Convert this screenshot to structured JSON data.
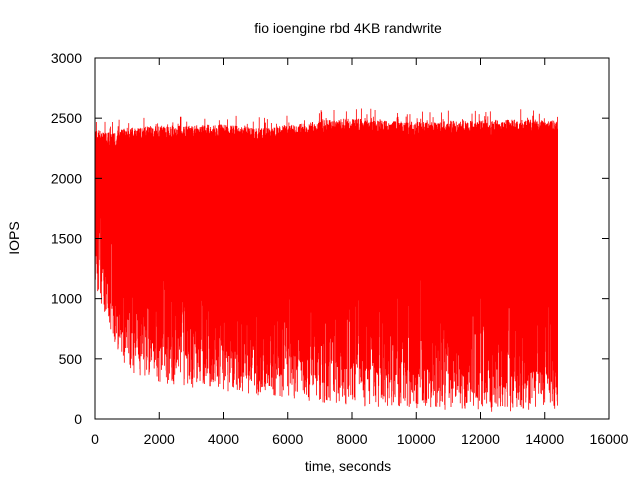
{
  "chart_data": {
    "type": "line",
    "title": "fio ioengine rbd 4KB randwrite",
    "xlabel": "time, seconds",
    "ylabel": "IOPS",
    "xlim": [
      0,
      16000
    ],
    "ylim": [
      0,
      3000
    ],
    "xticks": [
      0,
      2000,
      4000,
      6000,
      8000,
      10000,
      12000,
      14000,
      16000
    ],
    "yticks": [
      0,
      500,
      1000,
      1500,
      2000,
      2500,
      3000
    ],
    "xtick_labels": [
      "0",
      "2000",
      "4000",
      "6000",
      "8000",
      "10000",
      "12000",
      "14000",
      "16000"
    ],
    "ytick_labels": [
      "0",
      "500",
      "1000",
      "1500",
      "2000",
      "2500",
      "3000"
    ],
    "grid": false,
    "legend": "none",
    "series": [
      {
        "color": "#ff0000",
        "x": [
          0,
          500,
          1000,
          2000,
          3000,
          4000,
          5000,
          6000,
          7000,
          8000,
          9000,
          10000,
          11000,
          12000,
          13000,
          14000,
          14400
        ],
        "upper": [
          2400,
          2380,
          2420,
          2440,
          2440,
          2450,
          2420,
          2440,
          2480,
          2500,
          2480,
          2470,
          2480,
          2480,
          2490,
          2490,
          2480
        ],
        "lower": [
          1100,
          700,
          400,
          300,
          250,
          230,
          200,
          170,
          140,
          110,
          90,
          80,
          70,
          60,
          60,
          50,
          60
        ]
      }
    ]
  }
}
